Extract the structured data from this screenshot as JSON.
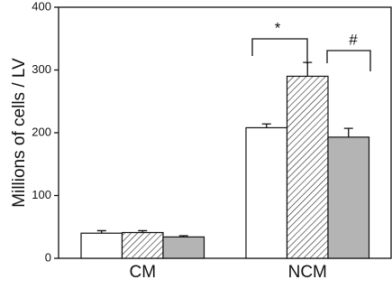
{
  "chart_data": {
    "type": "bar",
    "ylabel": "Millions of cells / LV",
    "categories": [
      "CM",
      "NCM"
    ],
    "series": [
      {
        "color": "#ffffff",
        "values": [
          40,
          208
        ],
        "errors": [
          4,
          6
        ]
      },
      {
        "color": "#ffffff",
        "hatch": true,
        "values": [
          41,
          290
        ],
        "errors": [
          3,
          22
        ]
      },
      {
        "color": "#b4b4b4",
        "values": [
          34,
          193
        ],
        "errors": [
          2,
          14
        ]
      }
    ],
    "ylim": [
      0,
      400
    ],
    "yticks": [
      0,
      100,
      200,
      300,
      400
    ],
    "annotations": [
      "*",
      "#"
    ]
  }
}
